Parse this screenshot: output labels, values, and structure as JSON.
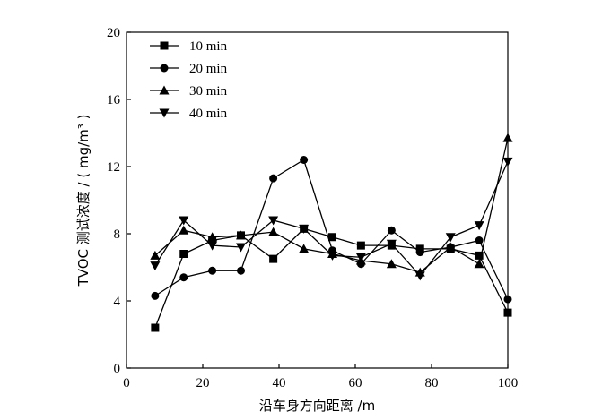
{
  "chart_data": {
    "type": "line",
    "xlabel": "沿车身方向距离 /m",
    "ylabel": "TVOC 测试浓度 / ( mg/m³ )",
    "xlim": [
      0,
      100
    ],
    "ylim": [
      0,
      20
    ],
    "xticks": [
      "0",
      "20",
      "40",
      "60",
      "80",
      "100"
    ],
    "yticks": [
      "0",
      "4",
      "8",
      "12",
      "16",
      "20"
    ],
    "grid": false,
    "legend_position": "top-left",
    "x": [
      7.5,
      15,
      22.5,
      30,
      38.5,
      46.5,
      54,
      61.5,
      69.5,
      77,
      85,
      92.5,
      100
    ],
    "series": [
      {
        "name": "10 min",
        "marker": "square",
        "values": [
          2.4,
          6.8,
          7.6,
          7.9,
          6.5,
          8.3,
          7.8,
          7.3,
          7.3,
          7.1,
          7.1,
          6.7,
          3.3
        ]
      },
      {
        "name": "20 min",
        "marker": "circle",
        "values": [
          4.3,
          5.4,
          5.8,
          5.8,
          11.3,
          12.4,
          7.0,
          6.2,
          8.2,
          6.9,
          7.2,
          7.6,
          4.1
        ]
      },
      {
        "name": "30 min",
        "marker": "triangle-up",
        "values": [
          6.7,
          8.2,
          7.8,
          7.9,
          8.1,
          7.1,
          6.8,
          6.4,
          6.2,
          5.7,
          7.2,
          6.2,
          13.7
        ]
      },
      {
        "name": "40 min",
        "marker": "triangle-down",
        "values": [
          6.1,
          8.8,
          7.3,
          7.2,
          8.8,
          8.3,
          6.7,
          6.6,
          7.4,
          5.5,
          7.8,
          8.5,
          12.3
        ]
      }
    ]
  }
}
